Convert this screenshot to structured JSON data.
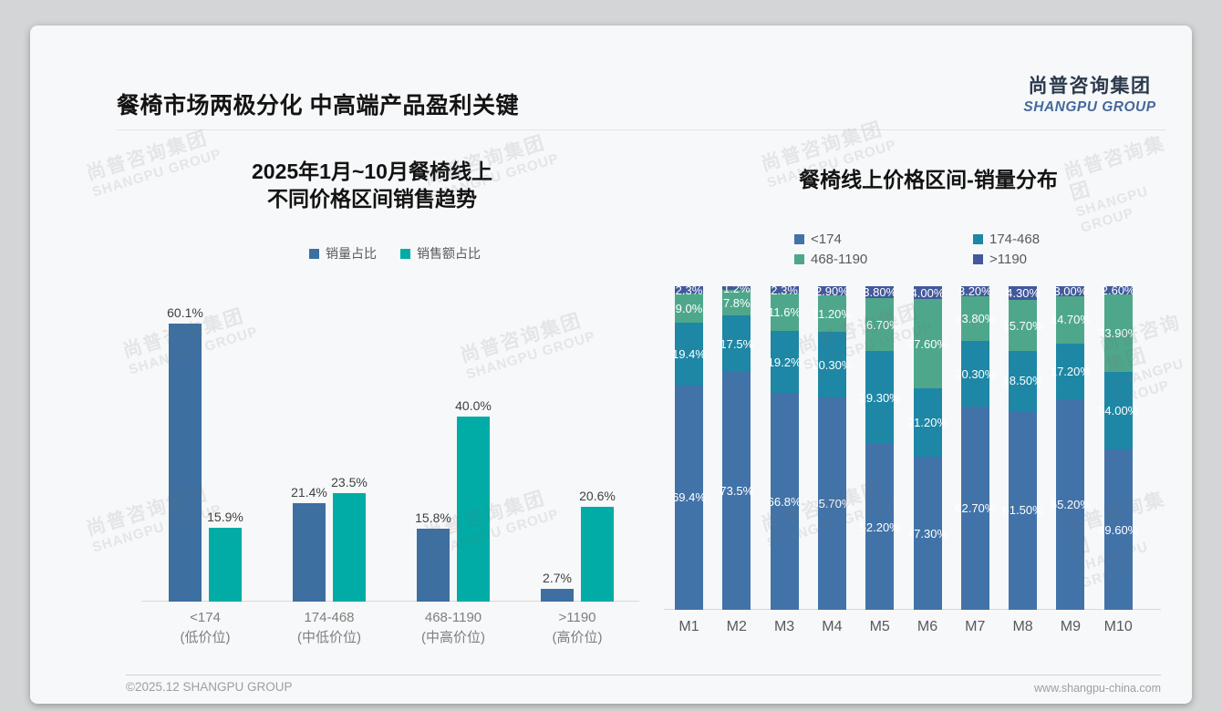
{
  "page": {
    "title": "餐椅市场两极分化 中高端产品盈利关键",
    "logo": {
      "cn": "尚普咨询集团",
      "en": "SHANGPU GROUP"
    },
    "watermark": {
      "line1": "尚普咨询集团",
      "line2": "SHANGPU GROUP"
    },
    "footer": {
      "left": "©2025.12 SHANGPU GROUP",
      "right": "www.shangpu-china.com"
    }
  },
  "colors": {
    "left_volume": "#3D6FA0",
    "left_revenue": "#00ACA5",
    "stack_lt174": "#4273A8",
    "stack_174_468": "#1E87A5",
    "stack_468_1190": "#4FA78B",
    "stack_gt1190": "#42599C"
  },
  "chart_data": [
    {
      "type": "bar",
      "title": "2025年1月~10月餐椅线上不同价格区间销售趋势",
      "title_lines": [
        "2025年1月~10月餐椅线上",
        "不同价格区间销售趋势"
      ],
      "categories": [
        "<174",
        "174-468",
        "468-1190",
        ">1190"
      ],
      "category_sublabels": [
        "(低价位)",
        "(中低价位)",
        "(中高价位)",
        "(高价位)"
      ],
      "unit": "percent",
      "ylim": [
        0,
        62
      ],
      "grid": false,
      "legend_position": "top",
      "series": [
        {
          "name": "销量占比",
          "color": "#3D6FA0",
          "values": [
            60.1,
            21.4,
            15.8,
            2.7
          ],
          "labels": [
            "60.1%",
            "21.4%",
            "15.8%",
            "2.7%"
          ]
        },
        {
          "name": "销售额占比",
          "color": "#00ACA5",
          "values": [
            15.9,
            23.5,
            40.0,
            20.6
          ],
          "labels": [
            "15.9%",
            "23.5%",
            "40.0%",
            "20.6%"
          ]
        }
      ]
    },
    {
      "type": "bar",
      "variant": "stacked-100",
      "title": "餐椅线上价格区间-销量分布",
      "categories": [
        "M1",
        "M2",
        "M3",
        "M4",
        "M5",
        "M6",
        "M7",
        "M8",
        "M9",
        "M10"
      ],
      "unit": "percent",
      "ylim": [
        0,
        100
      ],
      "grid": false,
      "legend_position": "top",
      "series": [
        {
          "name": "<174",
          "color": "#4273A8",
          "values": [
            69.4,
            73.5,
            66.8,
            65.7,
            52.2,
            47.3,
            62.7,
            61.5,
            65.2,
            49.6
          ],
          "labels": [
            "69.4%",
            "73.5%",
            "66.8%",
            "65.70%",
            "52.20%",
            "47.30%",
            "62.70%",
            "61.50%",
            "65.20%",
            "49.60%"
          ]
        },
        {
          "name": "174-468",
          "color": "#1E87A5",
          "values": [
            19.4,
            17.5,
            19.2,
            20.3,
            29.3,
            21.2,
            20.3,
            18.5,
            17.2,
            24.0
          ],
          "labels": [
            "19.4%",
            "17.5%",
            "19.2%",
            "20.30%",
            "29.30%",
            "21.20%",
            "20.30%",
            "18.50%",
            "17.20%",
            "24.00%"
          ]
        },
        {
          "name": "468-1190",
          "color": "#4FA78B",
          "values": [
            9.0,
            7.8,
            11.6,
            11.2,
            16.7,
            27.6,
            13.8,
            15.7,
            14.7,
            23.9
          ],
          "labels": [
            "9.0%",
            "7.8%",
            "11.6%",
            "11.20%",
            "16.70%",
            "27.60%",
            "13.80%",
            "15.70%",
            "14.70%",
            "23.90%"
          ]
        },
        {
          "name": ">1190",
          "color": "#42599C",
          "values": [
            2.3,
            1.2,
            2.3,
            2.9,
            3.8,
            4.0,
            3.2,
            4.3,
            3.0,
            2.6
          ],
          "labels": [
            "2.3%",
            "1.2%",
            "2.3%",
            "2.90%",
            "3.80%",
            "4.00%",
            "3.20%",
            "4.30%",
            "3.00%",
            "2.60%"
          ]
        }
      ]
    }
  ]
}
